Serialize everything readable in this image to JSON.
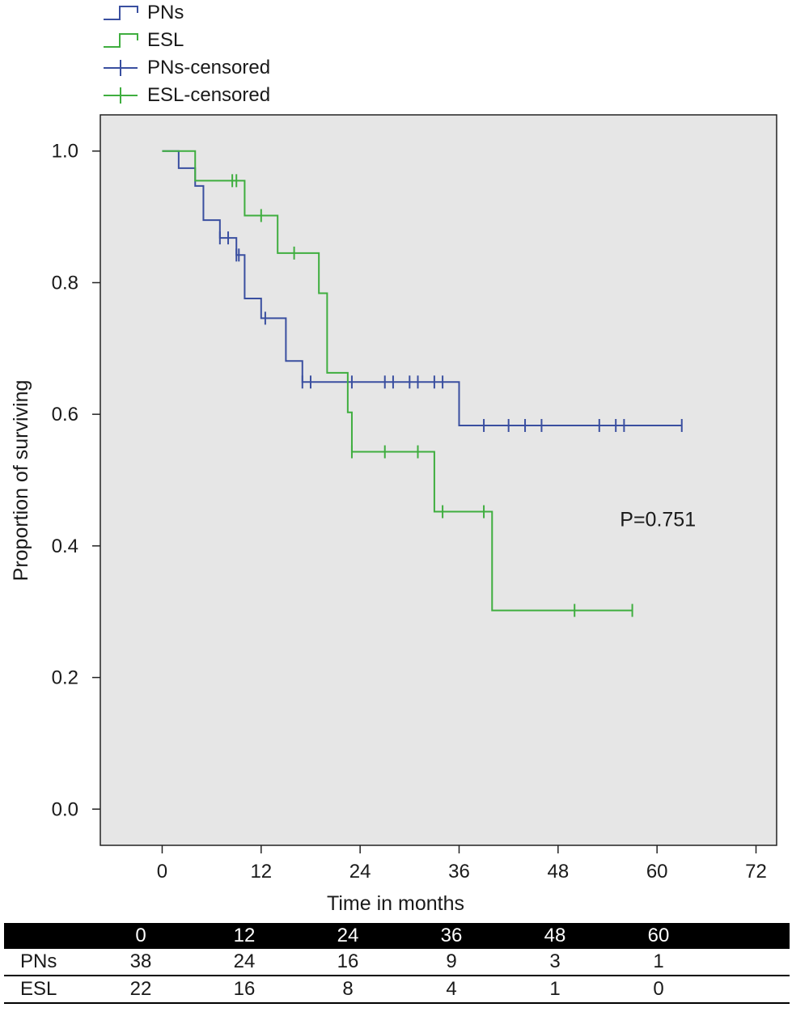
{
  "colors": {
    "pns": "#3a4fa0",
    "esl": "#3fae3f",
    "plot_bg": "#e6e6e6"
  },
  "legend": {
    "items": [
      {
        "label": "PNs",
        "kind": "step",
        "color_key": "pns"
      },
      {
        "label": "ESL",
        "kind": "step",
        "color_key": "esl"
      },
      {
        "label": "PNs-censored",
        "kind": "censor",
        "color_key": "pns"
      },
      {
        "label": "ESL-censored",
        "kind": "censor",
        "color_key": "esl"
      }
    ]
  },
  "chart_data": {
    "type": "line",
    "subtype": "kaplan-meier-step",
    "xlabel": "Time in months",
    "ylabel": "Proportion of surviving",
    "xlim": [
      -7.5,
      74.5
    ],
    "ylim": [
      -0.055,
      1.055
    ],
    "xticks": [
      0,
      12,
      24,
      36,
      48,
      60,
      72
    ],
    "yticks": [
      0.0,
      0.2,
      0.4,
      0.6,
      0.8,
      1.0
    ],
    "ytick_labels": [
      "0.0",
      "0.2",
      "0.4",
      "0.6",
      "0.8",
      "1.0"
    ],
    "annotation": "P=0.751",
    "annotation_pos": {
      "x": 55.5,
      "y": 0.43
    },
    "series": [
      {
        "name": "PNs",
        "color_key": "pns",
        "steps": [
          [
            0,
            1.0
          ],
          [
            2,
            0.974
          ],
          [
            4,
            0.947
          ],
          [
            5,
            0.895
          ],
          [
            7,
            0.868
          ],
          [
            9,
            0.842
          ],
          [
            10,
            0.776
          ],
          [
            12,
            0.746
          ],
          [
            15,
            0.681
          ],
          [
            17,
            0.649
          ],
          [
            36,
            0.583
          ],
          [
            63,
            0.583
          ]
        ],
        "censored": [
          [
            7,
            0.868
          ],
          [
            8,
            0.868
          ],
          [
            9,
            0.842
          ],
          [
            9.3,
            0.842
          ],
          [
            12.5,
            0.746
          ],
          [
            17,
            0.649
          ],
          [
            18,
            0.649
          ],
          [
            23,
            0.649
          ],
          [
            27,
            0.649
          ],
          [
            28,
            0.649
          ],
          [
            30,
            0.649
          ],
          [
            31,
            0.649
          ],
          [
            33,
            0.649
          ],
          [
            34,
            0.649
          ],
          [
            39,
            0.583
          ],
          [
            42,
            0.583
          ],
          [
            44,
            0.583
          ],
          [
            46,
            0.583
          ],
          [
            53,
            0.583
          ],
          [
            55,
            0.583
          ],
          [
            56,
            0.583
          ],
          [
            63,
            0.583
          ]
        ]
      },
      {
        "name": "ESL",
        "color_key": "esl",
        "steps": [
          [
            0,
            1.0
          ],
          [
            4,
            0.955
          ],
          [
            10,
            0.902
          ],
          [
            14,
            0.845
          ],
          [
            19,
            0.784
          ],
          [
            20,
            0.663
          ],
          [
            22.5,
            0.603
          ],
          [
            23,
            0.543
          ],
          [
            33,
            0.452
          ],
          [
            40,
            0.302
          ],
          [
            57,
            0.302
          ]
        ],
        "censored": [
          [
            8.5,
            0.955
          ],
          [
            9,
            0.955
          ],
          [
            12,
            0.902
          ],
          [
            16,
            0.845
          ],
          [
            23,
            0.543
          ],
          [
            27,
            0.543
          ],
          [
            31,
            0.543
          ],
          [
            34,
            0.452
          ],
          [
            39,
            0.452
          ],
          [
            50,
            0.302
          ],
          [
            57,
            0.302
          ]
        ]
      }
    ]
  },
  "risk_table": {
    "header_times": [
      "0",
      "12",
      "24",
      "36",
      "48",
      "60"
    ],
    "rows": [
      {
        "label": "PNs",
        "values": [
          "38",
          "24",
          "16",
          "9",
          "3",
          "1"
        ]
      },
      {
        "label": "ESL",
        "values": [
          "22",
          "16",
          "8",
          "4",
          "1",
          "0"
        ]
      }
    ]
  }
}
